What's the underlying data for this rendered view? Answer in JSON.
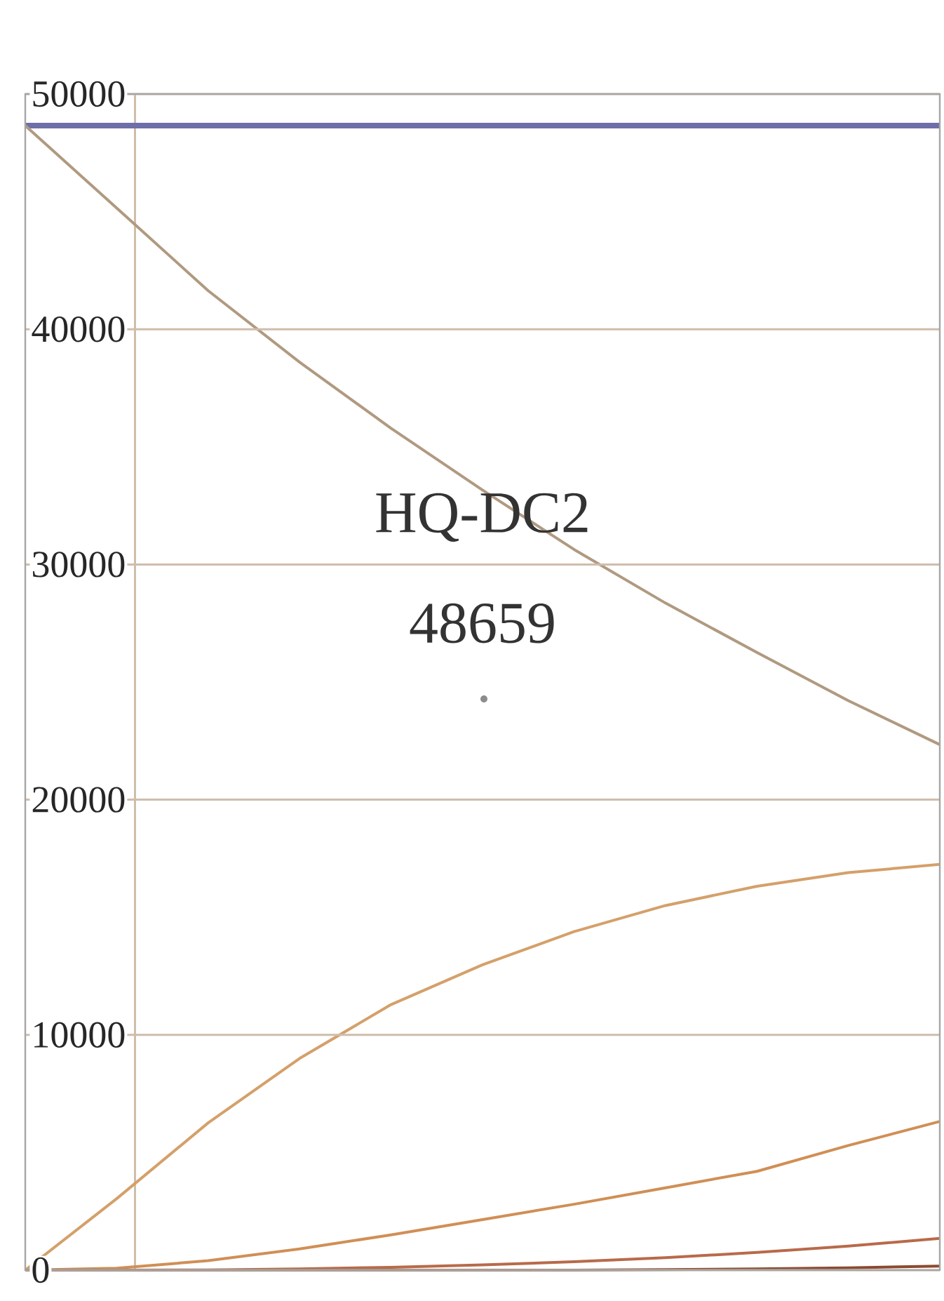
{
  "chart_data": {
    "type": "line",
    "categories": [
      null,
      null,
      null,
      null,
      null,
      null,
      null,
      null,
      null,
      null,
      null
    ],
    "ylim": [
      0,
      50000
    ],
    "yticks": [
      0,
      10000,
      20000,
      30000,
      40000,
      50000
    ],
    "grid": "y",
    "marker": "none",
    "line_style": "solid",
    "series": [
      {
        "color": "#6e6ea8",
        "values": [
          48659,
          48659,
          48659,
          48659,
          48659,
          48659,
          48659,
          48659,
          48659,
          48659,
          48659
        ]
      },
      {
        "color": "#b09a80",
        "values": [
          48659,
          45150,
          41640,
          38600,
          35790,
          33160,
          30640,
          28360,
          26260,
          24210,
          22340
        ]
      },
      {
        "color": "#d4a06a",
        "values": [
          0,
          3040,
          6260,
          9000,
          11290,
          12980,
          14390,
          15500,
          16320,
          16900,
          17250
        ]
      },
      {
        "color": "#d08f55",
        "values": [
          0,
          80,
          400,
          900,
          1500,
          2150,
          2800,
          3500,
          4200,
          5300,
          6320
        ]
      },
      {
        "color": "#b86a4a",
        "values": [
          0,
          0,
          10,
          50,
          120,
          220,
          360,
          530,
          750,
          1020,
          1350
        ]
      },
      {
        "color": "#8b4a30",
        "values": [
          0,
          0,
          0,
          0,
          0,
          0,
          0,
          20,
          50,
          100,
          170
        ]
      }
    ],
    "annotations": [
      "HQ-DC2",
      "48659"
    ]
  }
}
